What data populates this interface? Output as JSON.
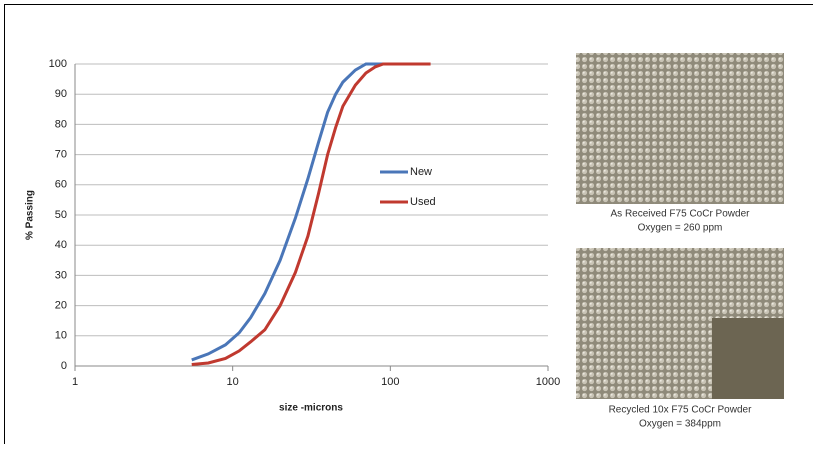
{
  "chart_data": {
    "type": "line",
    "x_label": "size -microns",
    "y_label": "% Passing",
    "x": [
      5.5,
      7,
      9,
      11,
      13,
      16,
      20,
      25,
      30,
      35,
      40,
      45,
      50,
      60,
      70,
      80,
      90,
      100,
      130,
      180
    ],
    "series": [
      {
        "name": "New",
        "color": "#4a76b8",
        "values": [
          2,
          4,
          7,
          11,
          16,
          24,
          35,
          49,
          62,
          74,
          84,
          90,
          94,
          98,
          100,
          100,
          100,
          100,
          null,
          null
        ]
      },
      {
        "name": "Used",
        "color": "#c0392f",
        "values": [
          0.5,
          1,
          2.5,
          5,
          8,
          12,
          20,
          31,
          43,
          57,
          70,
          79,
          86,
          93,
          97,
          99,
          100,
          100,
          100,
          100
        ]
      }
    ],
    "xlim": [
      1,
      1000
    ],
    "xticks": [
      1,
      10,
      100,
      1000
    ],
    "xscale": "log",
    "ylim": [
      0,
      100
    ],
    "yticks": [
      0,
      10,
      20,
      30,
      40,
      50,
      60,
      70,
      80,
      90,
      100
    ],
    "grid": true
  },
  "images": [
    {
      "caption": [
        "As Received F75 CoCr Powder",
        "Oxygen = 260 ppm"
      ]
    },
    {
      "caption": [
        "Recycled 10x F75 CoCr Powder",
        "Oxygen = 384ppm"
      ]
    }
  ]
}
